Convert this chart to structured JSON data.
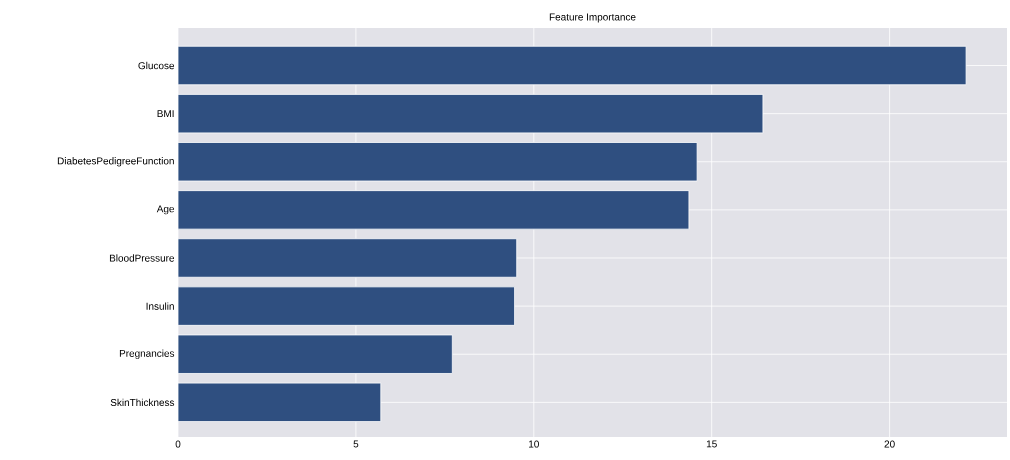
{
  "chart_data": {
    "type": "bar",
    "orientation": "horizontal",
    "title": "Feature Importance",
    "categories": [
      "Glucose",
      "BMI",
      "DiabetesPedigreeFunction",
      "Age",
      "BloodPressure",
      "Insulin",
      "Pregnancies",
      "SkinThickness"
    ],
    "values": [
      22.15,
      16.44,
      14.59,
      14.36,
      9.52,
      9.46,
      7.71,
      5.7
    ],
    "color": "#2f4f80",
    "xlim": [
      0,
      23.3
    ],
    "xticks": [
      0,
      5,
      10,
      15,
      20
    ],
    "grid": true
  }
}
